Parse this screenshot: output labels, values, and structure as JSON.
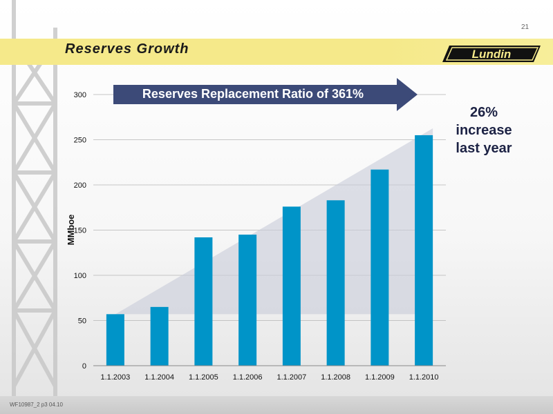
{
  "slide": {
    "page_number": "21",
    "title": "Reserves Growth",
    "logo_text": "Lundin",
    "banner": "Reserves Replacement Ratio of 361%",
    "annotation_line1": "26% increase",
    "annotation_line2": "last year",
    "footer_ref": "WF10987_2 p3 04.10"
  },
  "colors": {
    "bar": "#0094c8",
    "banner": "#3c4a78",
    "title_band": "#f5e98a",
    "annotation_text": "#1c2244"
  },
  "chart_data": {
    "type": "bar",
    "categories": [
      "1.1.2003",
      "1.1.2004",
      "1.1.2005",
      "1.1.2006",
      "1.1.2007",
      "1.1.2008",
      "1.1.2009",
      "1.1.2010"
    ],
    "values": [
      57,
      65,
      142,
      145,
      176,
      183,
      217,
      255
    ],
    "title": "",
    "xlabel": "",
    "ylabel": "MMboe",
    "ylim": [
      0,
      300
    ],
    "yticks": [
      0,
      50,
      100,
      150,
      200,
      250,
      300
    ],
    "grid": true
  }
}
